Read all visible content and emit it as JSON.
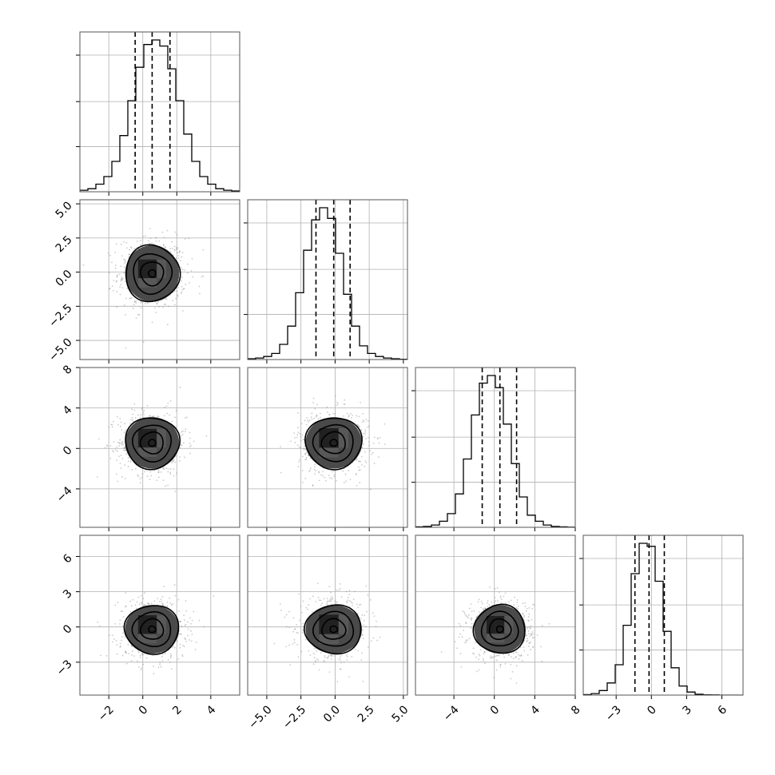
{
  "chart_data": {
    "type": "corner",
    "parameters": [
      {
        "mean": 0.55,
        "sd": 1.0,
        "range": [
          -3.7,
          5.7
        ],
        "ticks": [
          -2,
          0,
          2,
          4
        ],
        "tick_labels": [
          "−2",
          "0",
          "2",
          "4"
        ],
        "quantiles": [
          -0.45,
          0.55,
          1.6
        ]
      },
      {
        "mean": -0.1,
        "sd": 1.3,
        "range": [
          -6.4,
          5.3
        ],
        "ticks": [
          -5,
          -2.5,
          0,
          2.5,
          5
        ],
        "tick_labels": [
          "−5.0",
          "−2.5",
          "0.0",
          "2.5",
          "5.0"
        ],
        "quantiles": [
          -1.4,
          -0.1,
          1.1
        ]
      },
      {
        "mean": 0.55,
        "sd": 1.6,
        "range": [
          -7.8,
          8.0
        ],
        "ticks": [
          -4,
          0,
          4,
          8
        ],
        "tick_labels": [
          "−4",
          "0",
          "4",
          "8"
        ],
        "quantiles": [
          -1.2,
          0.55,
          2.2
        ]
      },
      {
        "mean": -0.2,
        "sd": 1.3,
        "range": [
          -5.8,
          7.8
        ],
        "ticks": [
          -3,
          0,
          3,
          6
        ],
        "tick_labels": [
          "−3",
          "0",
          "3",
          "6"
        ],
        "quantiles": [
          -1.4,
          -0.2,
          1.1
        ]
      }
    ],
    "histograms": [
      [
        1,
        2,
        5,
        10,
        20,
        37,
        60,
        82,
        97,
        100,
        96,
        81,
        60,
        38,
        20,
        10,
        5,
        2,
        1,
        0.5
      ],
      [
        0.5,
        1,
        2,
        4,
        10,
        22,
        44,
        72,
        92,
        100,
        93,
        70,
        43,
        22,
        9,
        4,
        2,
        1,
        0.5,
        0.2
      ],
      [
        0.3,
        0.6,
        1.5,
        4,
        9,
        22,
        45,
        74,
        95,
        100,
        92,
        68,
        42,
        20,
        8,
        4,
        1.5,
        0.6,
        0.3,
        0.1
      ],
      [
        0.3,
        1,
        3,
        8,
        20,
        46,
        80,
        100,
        98,
        75,
        42,
        18,
        6,
        2,
        0.6,
        0.2,
        0.1,
        0,
        0,
        0
      ]
    ],
    "quantile_levels": [
      0.16,
      0.5,
      0.84
    ],
    "contour_levels": [
      0.5,
      1.0,
      1.5,
      2.0
    ],
    "grid": true
  }
}
